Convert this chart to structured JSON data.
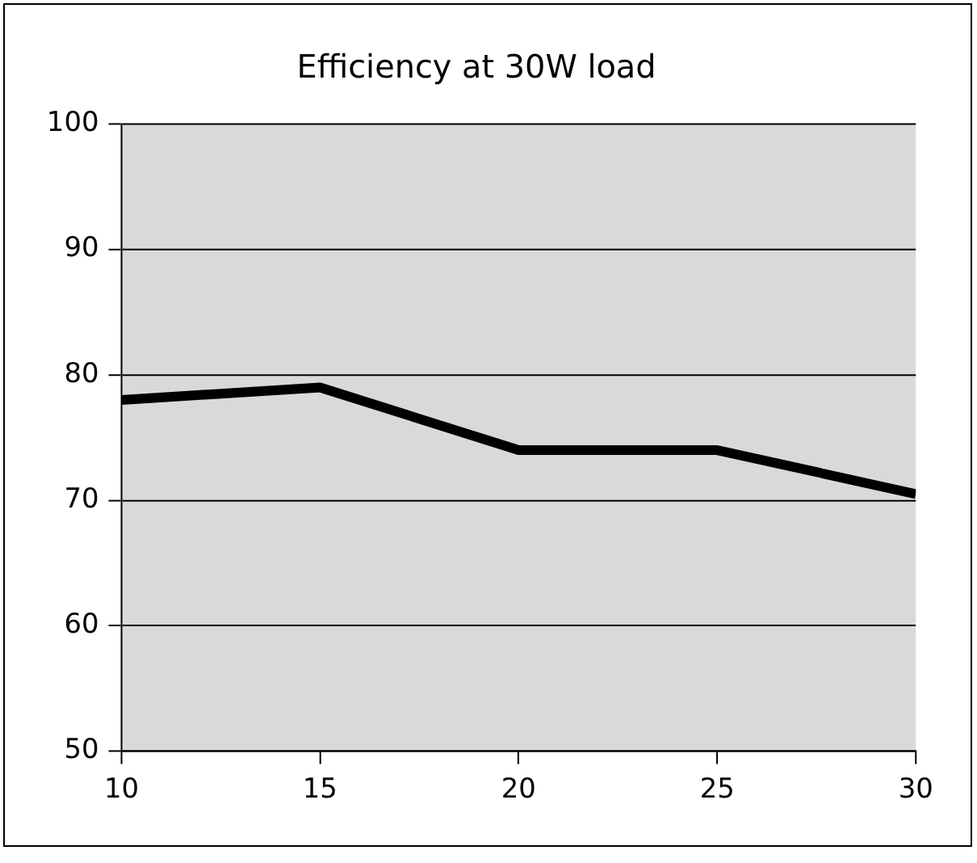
{
  "chart_data": {
    "type": "line",
    "title": "Efficiency at 30W load",
    "x": [
      10,
      15,
      20,
      25,
      30
    ],
    "series": [
      {
        "color": "#000000",
        "values": [
          78,
          79,
          74,
          74,
          70.5
        ]
      }
    ],
    "xlim": [
      10,
      30
    ],
    "xticks": [
      10,
      15,
      20,
      25,
      30
    ],
    "ylim": [
      50,
      100
    ],
    "yticks": [
      50,
      60,
      70,
      80,
      90,
      100
    ],
    "grid": "y",
    "legend": false,
    "marker": "none",
    "line_style": "solid"
  }
}
